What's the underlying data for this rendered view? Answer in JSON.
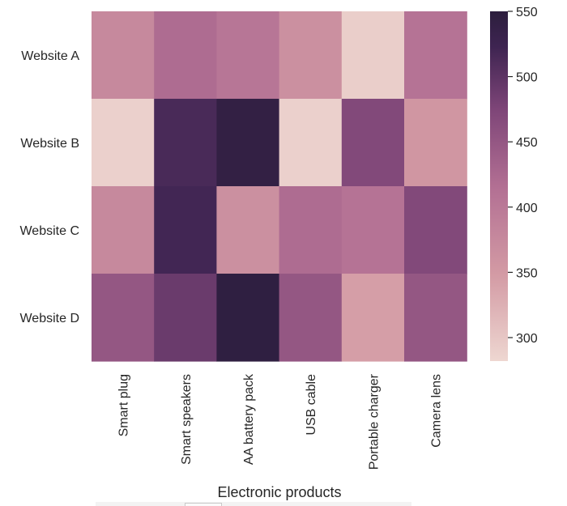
{
  "chart_data": {
    "type": "heatmap",
    "title": "",
    "xlabel": "Electronic products",
    "ylabel": "",
    "categories": [
      "Smart plug",
      "Smart speakers",
      "AA battery pack",
      "USB cable",
      "Portable charger",
      "Camera lens"
    ],
    "rows": [
      "Website A",
      "Website B",
      "Website C",
      "Website D"
    ],
    "values": [
      [
        375,
        420,
        405,
        365,
        292,
        410
      ],
      [
        290,
        515,
        540,
        290,
        470,
        355
      ],
      [
        375,
        520,
        365,
        420,
        410,
        470
      ],
      [
        450,
        490,
        545,
        450,
        345,
        450
      ]
    ],
    "colorbar": {
      "min": 282,
      "max": 550,
      "ticks": [
        300,
        350,
        400,
        450,
        500,
        550
      ],
      "colors": [
        "#eed7d1",
        "#d39aa4",
        "#b26f93",
        "#7e4578",
        "#3e2451",
        "#2c1e3d"
      ],
      "stops": [
        0,
        0.25,
        0.5,
        0.72,
        0.9,
        1
      ]
    },
    "grid": false,
    "legend": "right"
  }
}
